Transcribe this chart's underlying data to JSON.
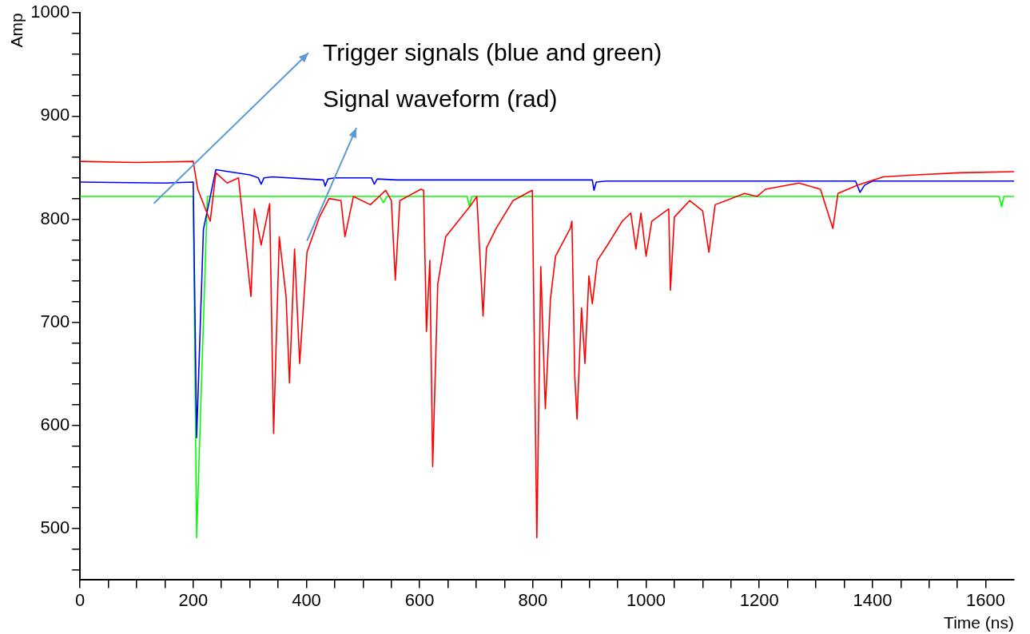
{
  "chart_data": {
    "type": "line",
    "xlabel": "Time (ns)",
    "ylabel": "Amp",
    "xlim": [
      0,
      1650
    ],
    "ylim": [
      450,
      1000
    ],
    "xticks": [
      0,
      {
        "value": 50,
        "label": null
      },
      {
        "value": 100,
        "label": null
      },
      {
        "value": 150,
        "label": null
      },
      200,
      {
        "value": 250,
        "label": null
      },
      {
        "value": 300,
        "label": null
      },
      {
        "value": 350,
        "label": null
      },
      400,
      {
        "value": 450,
        "label": null
      },
      {
        "value": 500,
        "label": null
      },
      {
        "value": 550,
        "label": null
      },
      600,
      {
        "value": 650,
        "label": null
      },
      {
        "value": 700,
        "label": null
      },
      {
        "value": 750,
        "label": null
      },
      800,
      {
        "value": 850,
        "label": null
      },
      {
        "value": 900,
        "label": null
      },
      {
        "value": 950,
        "label": null
      },
      1000,
      {
        "value": 1050,
        "label": null
      },
      {
        "value": 1100,
        "label": null
      },
      {
        "value": 1150,
        "label": null
      },
      1200,
      {
        "value": 1250,
        "label": null
      },
      {
        "value": 1300,
        "label": null
      },
      {
        "value": 1350,
        "label": null
      },
      1400,
      {
        "value": 1450,
        "label": null
      },
      {
        "value": 1500,
        "label": null
      },
      {
        "value": 1550,
        "label": null
      },
      1600
    ],
    "yticks": [
      {
        "value": 460,
        "label": null
      },
      {
        "value": 480,
        "label": null
      },
      500,
      {
        "value": 520,
        "label": null
      },
      {
        "value": 540,
        "label": null
      },
      {
        "value": 560,
        "label": null
      },
      {
        "value": 580,
        "label": null
      },
      600,
      {
        "value": 620,
        "label": null
      },
      {
        "value": 640,
        "label": null
      },
      {
        "value": 660,
        "label": null
      },
      {
        "value": 680,
        "label": null
      },
      700,
      {
        "value": 720,
        "label": null
      },
      {
        "value": 740,
        "label": null
      },
      {
        "value": 760,
        "label": null
      },
      {
        "value": 780,
        "label": null
      },
      800,
      {
        "value": 820,
        "label": null
      },
      {
        "value": 840,
        "label": null
      },
      {
        "value": 860,
        "label": null
      },
      {
        "value": 880,
        "label": null
      },
      900,
      {
        "value": 920,
        "label": null
      },
      {
        "value": 940,
        "label": null
      },
      {
        "value": 960,
        "label": null
      },
      {
        "value": 980,
        "label": null
      },
      1000
    ],
    "grid": false,
    "legend": false,
    "marker": "none",
    "line_style": "solid",
    "annotations": [
      "Trigger signals (blue and green)",
      "Signal waveform (rad)"
    ],
    "series": [
      {
        "color": "#ff0000",
        "x": [
          0,
          100,
          200,
          208,
          230,
          240,
          260,
          280,
          302,
          308,
          320,
          335,
          342,
          352,
          364,
          370,
          379,
          388,
          401,
          423,
          440,
          461,
          468,
          483,
          513,
          540,
          550,
          557,
          565,
          602,
          607,
          612,
          618,
          623,
          632,
          646,
          691,
          701,
          712,
          718,
          735,
          765,
          799,
          807,
          814,
          822,
          831,
          840,
          866,
          869,
          874,
          878,
          886,
          892,
          899,
          905,
          914,
          932,
          958,
          973,
          982,
          991,
          1000,
          1010,
          1040,
          1043,
          1050,
          1077,
          1100,
          1111,
          1122,
          1174,
          1196,
          1211,
          1270,
          1308,
          1330,
          1339,
          1374,
          1419,
          1478,
          1553,
          1650
        ],
        "values": [
          856,
          855,
          856,
          829,
          798,
          845,
          835,
          840,
          725,
          810,
          775,
          815,
          592,
          783,
          725,
          641,
          771,
          660,
          768,
          802,
          820,
          818,
          783,
          822,
          814,
          828,
          818,
          741,
          818,
          829,
          828,
          691,
          760,
          560,
          737,
          783,
          814,
          822,
          706,
          772,
          791,
          818,
          828,
          491,
          754,
          616,
          722,
          764,
          791,
          798,
          648,
          606,
          714,
          660,
          745,
          718,
          760,
          775,
          798,
          806,
          771,
          806,
          764,
          798,
          810,
          731,
          802,
          818,
          808,
          768,
          814,
          825,
          822,
          829,
          835,
          829,
          791,
          825,
          833,
          841,
          843,
          845,
          846
        ]
      },
      {
        "color": "#0000ff",
        "x": [
          0,
          150,
          200,
          206,
          218,
          240,
          300,
          315,
          320,
          325,
          340,
          430,
          433,
          438,
          450,
          515,
          520,
          525,
          560,
          905,
          908,
          912,
          930,
          1370,
          1378,
          1386,
          1400,
          1650
        ],
        "values": [
          836,
          835,
          836,
          588,
          790,
          848,
          843,
          840,
          834,
          840,
          841,
          838,
          832,
          839,
          840,
          840,
          834,
          839,
          838,
          838,
          828,
          836,
          837,
          837,
          826,
          833,
          837,
          837
        ]
      },
      {
        "color": "#00ff00",
        "x": [
          0,
          200,
          206,
          225,
          530,
          536,
          542,
          684,
          688,
          692,
          1624,
          1628,
          1632,
          1650
        ],
        "values": [
          822,
          822,
          491,
          822,
          822,
          816,
          822,
          822,
          812,
          822,
          822,
          812,
          822,
          822
        ]
      }
    ]
  }
}
